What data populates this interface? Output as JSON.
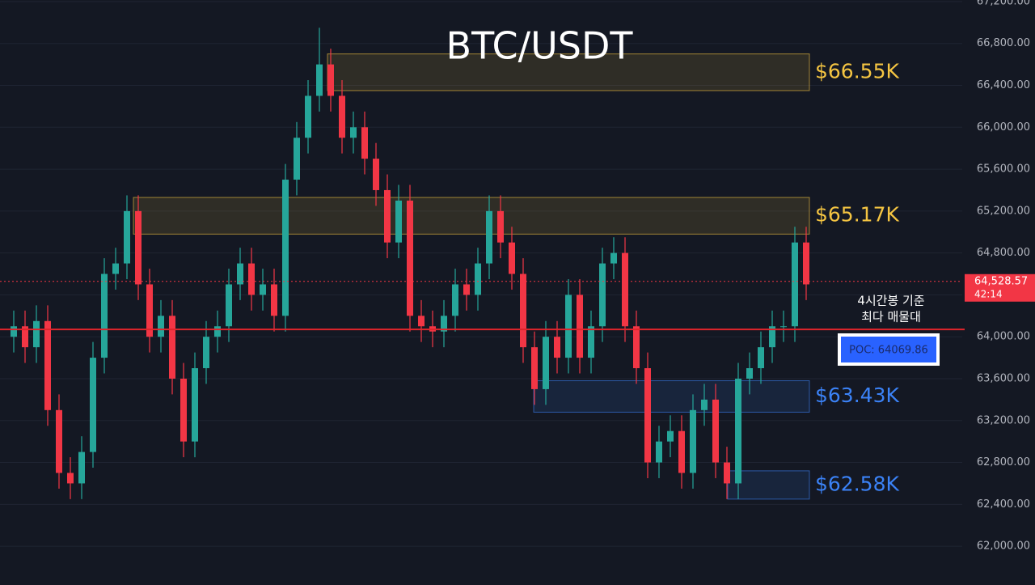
{
  "chart_data": {
    "type": "candlestick",
    "title": "BTC/USDT",
    "open": [
      64000,
      64100,
      63900,
      64150,
      63300,
      62700,
      62600,
      62900,
      63800,
      64600,
      64700,
      65200,
      64500,
      64000,
      64200,
      63600,
      63000,
      63700,
      64000,
      64100,
      64500,
      64700,
      64400,
      64500,
      64200,
      65500,
      65900,
      66300,
      66600,
      66300,
      65900,
      66000,
      65700,
      65400,
      64900,
      65300,
      64200,
      64100,
      64050,
      64200,
      64500,
      64400,
      64700,
      65200,
      64900,
      64600,
      63900,
      63500,
      64000,
      63800,
      64400,
      63800,
      64100,
      64700,
      64800,
      64100,
      63700,
      62800,
      63000,
      63100,
      62700,
      63300,
      63400,
      62800,
      62600,
      63600,
      63700,
      63900,
      64100,
      64100,
      64900
    ],
    "high": [
      64250,
      64250,
      64300,
      64300,
      63450,
      62850,
      63050,
      63950,
      64750,
      64850,
      65350,
      65350,
      64650,
      64350,
      64350,
      63750,
      63850,
      64150,
      64250,
      64650,
      64850,
      64850,
      64650,
      64650,
      65650,
      66050,
      66450,
      66950,
      66750,
      66450,
      66150,
      66150,
      65850,
      65550,
      65450,
      65450,
      64350,
      64250,
      64350,
      64650,
      64650,
      64850,
      65350,
      65350,
      65050,
      64750,
      64050,
      64150,
      64150,
      64550,
      64550,
      64250,
      64850,
      64950,
      64950,
      64250,
      63850,
      63150,
      63250,
      63250,
      63450,
      63550,
      63550,
      62950,
      63750,
      63850,
      64050,
      64250,
      64250,
      65050,
      65050
    ],
    "low": [
      63850,
      63750,
      63750,
      63150,
      62550,
      62450,
      62450,
      62750,
      63650,
      64450,
      64550,
      64350,
      63850,
      63850,
      63450,
      62850,
      62850,
      63550,
      63850,
      63950,
      64350,
      64250,
      64250,
      64050,
      64050,
      65350,
      65750,
      66150,
      66150,
      65750,
      65750,
      65550,
      65250,
      64750,
      64750,
      64050,
      63950,
      63900,
      63900,
      64050,
      64250,
      64250,
      64550,
      64750,
      64450,
      63750,
      63350,
      63350,
      63650,
      63650,
      63650,
      63650,
      63950,
      64550,
      63950,
      63550,
      62650,
      62650,
      62850,
      62550,
      62550,
      63150,
      62650,
      62450,
      62450,
      63450,
      63550,
      63750,
      63950,
      63950,
      64350
    ],
    "close": [
      64100,
      63900,
      64150,
      63300,
      62700,
      62600,
      62900,
      63800,
      64600,
      64700,
      65200,
      64500,
      64000,
      64200,
      63600,
      63000,
      63700,
      64000,
      64100,
      64500,
      64700,
      64400,
      64500,
      64200,
      65500,
      65900,
      66300,
      66600,
      66300,
      65900,
      66000,
      65700,
      65400,
      64900,
      65300,
      64200,
      64100,
      64050,
      64200,
      64500,
      64400,
      64700,
      65200,
      64900,
      64600,
      63900,
      63500,
      64000,
      63800,
      64400,
      63800,
      64100,
      64700,
      64800,
      64100,
      63700,
      62800,
      63000,
      63100,
      62700,
      63300,
      63400,
      62800,
      62600,
      63600,
      63700,
      63900,
      64100,
      64100,
      64900,
      64500
    ],
    "up_color": "#26a69a",
    "down_color": "#f23645",
    "ylim": [
      61630,
      67215
    ],
    "yticks": [
      {
        "value": 62000,
        "label": "62,000.00"
      },
      {
        "value": 62400,
        "label": "62,400.00"
      },
      {
        "value": 62800,
        "label": "62,800.00"
      },
      {
        "value": 63200,
        "label": "63,200.00"
      },
      {
        "value": 63600,
        "label": "63,600.00"
      },
      {
        "value": 64000,
        "label": "64,000.00"
      },
      {
        "value": 64400,
        "label": "64,400.00"
      },
      {
        "value": 64800,
        "label": "64,800.00"
      },
      {
        "value": 65200,
        "label": "65,200.00"
      },
      {
        "value": 65600,
        "label": "65,600.00"
      },
      {
        "value": 66000,
        "label": "66,000.00"
      },
      {
        "value": 66400,
        "label": "66,400.00"
      },
      {
        "value": 66800,
        "label": "66,800.00"
      },
      {
        "value": 67200,
        "label": "67,200.00"
      }
    ],
    "grid": true,
    "zones": [
      {
        "label": "$66.55K",
        "low": 66350,
        "high": 66700,
        "color": "#f5c542"
      },
      {
        "label": "$65.17K",
        "low": 64980,
        "high": 65330,
        "color": "#f5c542"
      },
      {
        "label": "$63.43K",
        "low": 63280,
        "high": 63580,
        "color": "#3b82f6"
      },
      {
        "label": "$62.58K",
        "low": 62450,
        "high": 62720,
        "color": "#3b82f6"
      }
    ],
    "poc": {
      "value": 64069.86,
      "label": "POC: 64069.86",
      "color": "#e0252b"
    },
    "annotation": [
      "4시간봉 기준",
      "최다 매물대"
    ],
    "last_price": {
      "value": 64528.57,
      "label": "64,528.57",
      "timer": "42:14",
      "color": "#f23645"
    }
  }
}
